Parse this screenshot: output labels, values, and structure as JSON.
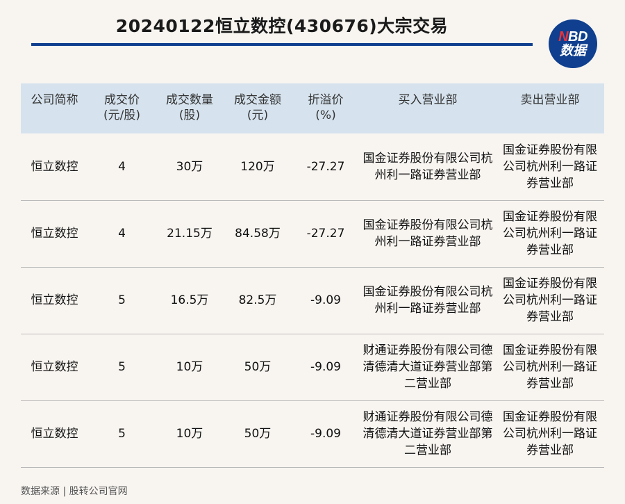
{
  "title": "20240122恒立数控(430676)大宗交易",
  "logo": {
    "line1_n": "N",
    "line1_rest": "BD",
    "line2": "数据"
  },
  "table": {
    "headers": [
      [
        "公司简称",
        ""
      ],
      [
        "成交价",
        "(元/股)"
      ],
      [
        "成交数量",
        "(股)"
      ],
      [
        "成交金额",
        "(元)"
      ],
      [
        "折溢价",
        "(%)"
      ],
      [
        "买入营业部",
        ""
      ],
      [
        "卖出营业部",
        ""
      ]
    ],
    "rows": [
      [
        "恒立数控",
        "4",
        "30万",
        "120万",
        "-27.27",
        "国金证券股份有限公司杭州利一路证券营业部",
        "国金证券股份有限公司杭州利一路证券营业部"
      ],
      [
        "恒立数控",
        "4",
        "21.15万",
        "84.58万",
        "-27.27",
        "国金证券股份有限公司杭州利一路证券营业部",
        "国金证券股份有限公司杭州利一路证券营业部"
      ],
      [
        "恒立数控",
        "5",
        "16.5万",
        "82.5万",
        "-9.09",
        "国金证券股份有限公司杭州利一路证券营业部",
        "国金证券股份有限公司杭州利一路证券营业部"
      ],
      [
        "恒立数控",
        "5",
        "10万",
        "50万",
        "-9.09",
        "财通证券股份有限公司德清德清大道证券营业部第二营业部",
        "国金证券股份有限公司杭州利一路证券营业部"
      ],
      [
        "恒立数控",
        "5",
        "10万",
        "50万",
        "-9.09",
        "财通证券股份有限公司德清德清大道证券营业部第二营业部",
        "国金证券股份有限公司杭州利一路证券营业部"
      ]
    ]
  },
  "source": "数据来源 | 股转公司官网",
  "colors": {
    "accent": "#0f3f8e",
    "header_bg": "#d6e3ee",
    "page_bg": "#f8f5f1",
    "logo_red": "#e8343a"
  }
}
